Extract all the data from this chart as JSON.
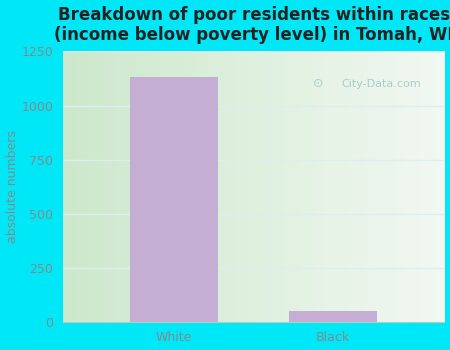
{
  "title": "Breakdown of poor residents within races\n(income below poverty level) in Tomah, WI",
  "categories": [
    "White",
    "Black"
  ],
  "values": [
    1130,
    50
  ],
  "bar_color": "#c4aed4",
  "ylabel": "absolute numbers",
  "ylim": [
    0,
    1250
  ],
  "yticks": [
    0,
    250,
    500,
    750,
    1000,
    1250
  ],
  "background_outer": "#00e8f8",
  "background_plot_left": "#d8f0d8",
  "background_plot_right": "#f5faf5",
  "title_fontsize": 12,
  "title_color": "#222222",
  "axis_label_fontsize": 9,
  "tick_fontsize": 9,
  "tick_color": "#888888",
  "ylabel_color": "#888888",
  "watermark_text": "City-Data.com",
  "watermark_color": "#aacccc",
  "grid_color": "#ddeeee",
  "bar_width": 0.55
}
